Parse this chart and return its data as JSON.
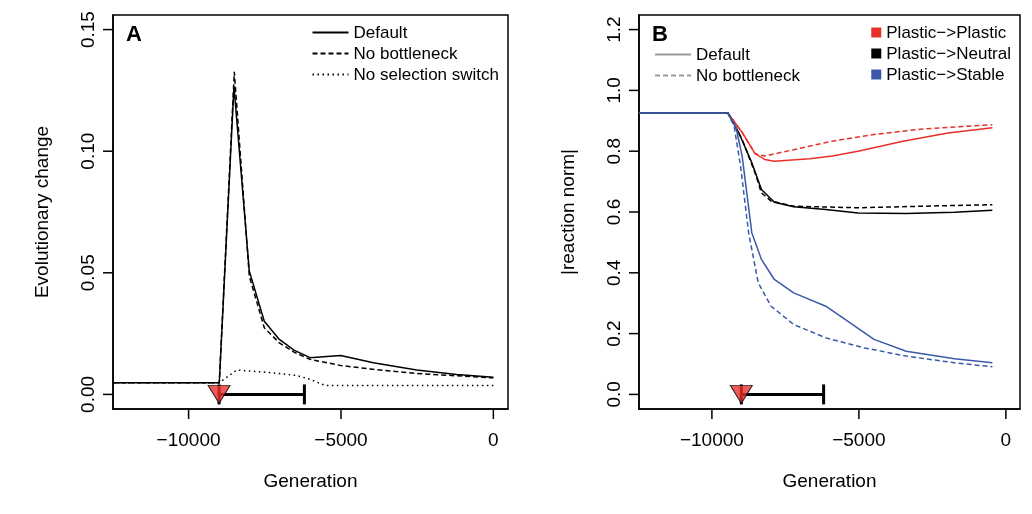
{
  "chart_data": [
    {
      "type": "line",
      "title": "A",
      "xlabel": "Generation",
      "ylabel": "Evolutionary change",
      "xlim": [
        -12480,
        480
      ],
      "ylim": [
        -0.006,
        0.156
      ],
      "xticks": [
        -10000,
        -5000,
        0
      ],
      "yticks": [
        {
          "value": 0,
          "label": "0.00"
        },
        0.05,
        {
          "value": 0.1,
          "label": "0.10"
        },
        0.15
      ],
      "grid": false,
      "legend": "top right",
      "series": [
        {
          "name": "Default",
          "color": "#000000",
          "line_style": "solid",
          "x": [
            -12480,
            -8993,
            -8511,
            -8008,
            -7516,
            -7023,
            -6542,
            -6017,
            -5010,
            -3938,
            -2516,
            -1203,
            0
          ],
          "values": [
            0.0048,
            0.0048,
            0.1267,
            0.0507,
            0.0301,
            0.0226,
            0.0182,
            0.0151,
            0.016,
            0.013,
            0.01,
            0.0082,
            0.0071
          ]
        },
        {
          "name": "No bottleneck",
          "color": "#000000",
          "line_style": "dashed",
          "x": [
            -12480,
            -8993,
            -8500,
            -8008,
            -7516,
            -7023,
            -6542,
            -6017,
            -5010,
            -3938,
            -2516,
            0
          ],
          "values": [
            0.0048,
            0.0048,
            0.1325,
            0.0486,
            0.0274,
            0.0212,
            0.0174,
            0.0144,
            0.0119,
            0.0103,
            0.0086,
            0.0068
          ]
        },
        {
          "name": "No selection switch",
          "color": "#000000",
          "line_style": "dotted",
          "x": [
            -12480,
            -8993,
            -8424,
            -7550,
            -6455,
            -6017,
            -5525,
            0
          ],
          "values": [
            0.0048,
            0.0048,
            0.01,
            0.0092,
            0.0078,
            0.0062,
            0.0037,
            0.0037
          ]
        },
        {
          "type": "scatter",
          "color": "#e8302a",
          "marker": "triangle",
          "x": [
            -9000
          ],
          "values": [
            0
          ],
          "xerrors": [
            [
              -9000,
              -6200
            ]
          ]
        }
      ]
    },
    {
      "type": "line",
      "title": "B",
      "xlabel": "Generation",
      "ylabel": "|reaction norm|",
      "xlim": [
        -12480,
        480
      ],
      "ylim": [
        -0.048,
        1.248
      ],
      "xticks": [
        -10000,
        -5000,
        0
      ],
      "yticks": [
        {
          "value": 0,
          "label": "0.0"
        },
        0.2,
        0.4,
        0.6,
        0.8,
        {
          "value": 1,
          "label": "1.0"
        },
        1.2
      ],
      "grid": false,
      "legend": "top right",
      "series": [
        {
          "name": "Default",
          "color": "#999999",
          "line_style": "solid",
          "values": [
            null
          ]
        },
        {
          "name": "No bottleneck",
          "color": "#999999",
          "line_style": "dashed",
          "values": [
            null
          ]
        },
        {
          "name": "Plastic−>Plastic",
          "color": "#e8302a",
          "line_style": "solid",
          "x": [
            -12480,
            -9460,
            -8971,
            -8533,
            -8205,
            -7877,
            -6673,
            -5908,
            -5032,
            -3501,
            -1969,
            -460
          ],
          "values": [
            0.926,
            0.926,
            0.862,
            0.792,
            0.773,
            0.767,
            0.775,
            0.784,
            0.8,
            0.833,
            0.86,
            0.877
          ]
        },
        {
          "color": "#e8302a",
          "line_style": "dashed",
          "x": [
            -12480,
            -9460,
            -8971,
            -8533,
            -8205,
            -7220,
            -5908,
            -4486,
            -2844,
            -460
          ],
          "values": [
            0.926,
            0.926,
            0.862,
            0.792,
            0.784,
            0.805,
            0.833,
            0.855,
            0.873,
            0.887
          ]
        },
        {
          "name": "Plastic−>Neutral",
          "color": "#000000",
          "line_style": "solid",
          "x": [
            -12480,
            -9460,
            -9080,
            -8642,
            -8315,
            -7877,
            -7220,
            -6126,
            -5032,
            -3391,
            -1750,
            -460
          ],
          "values": [
            0.926,
            0.926,
            0.86,
            0.762,
            0.674,
            0.632,
            0.617,
            0.608,
            0.597,
            0.595,
            0.599,
            0.606
          ]
        },
        {
          "color": "#000000",
          "line_style": "dashed",
          "x": [
            -12480,
            -9460,
            -8971,
            -8533,
            -8315,
            -7986,
            -7220,
            -5032,
            -2844,
            -460
          ],
          "values": [
            0.926,
            0.926,
            0.838,
            0.729,
            0.663,
            0.636,
            0.619,
            0.614,
            0.619,
            0.624
          ]
        },
        {
          "name": "Plastic−>Stable",
          "color": "#3a5aa8",
          "line_style": "solid",
          "x": [
            -12480,
            -9460,
            -9190,
            -8971,
            -8643,
            -8315,
            -7877,
            -7220,
            -6126,
            -5470,
            -4486,
            -3392,
            -1750,
            -460
          ],
          "values": [
            0.926,
            0.926,
            0.882,
            0.784,
            0.532,
            0.444,
            0.378,
            0.334,
            0.29,
            0.247,
            0.181,
            0.142,
            0.117,
            0.104
          ]
        },
        {
          "color": "#3a5aa8",
          "line_style": "dashed",
          "x": [
            -12480,
            -9460,
            -9244,
            -9025,
            -8752,
            -8424,
            -7986,
            -7220,
            -6126,
            -4813,
            -3392,
            -1750,
            -460
          ],
          "values": [
            0.926,
            0.926,
            0.882,
            0.751,
            0.532,
            0.367,
            0.29,
            0.23,
            0.186,
            0.153,
            0.126,
            0.104,
            0.091
          ]
        },
        {
          "type": "scatter",
          "color": "#e8302a",
          "marker": "triangle",
          "x": [
            -9000
          ],
          "values": [
            0
          ],
          "xerrors": [
            [
              -9000,
              -6200
            ]
          ]
        }
      ]
    }
  ]
}
